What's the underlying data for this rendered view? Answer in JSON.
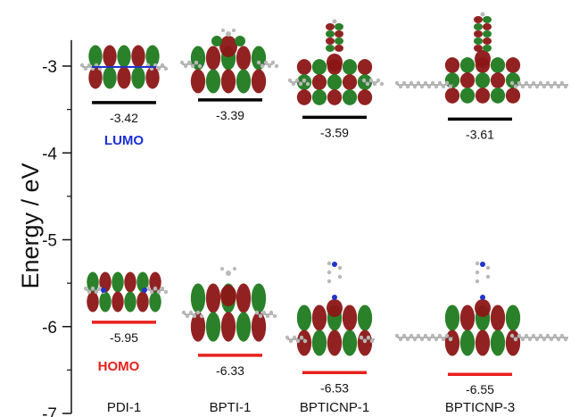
{
  "chart_data": {
    "type": "energy-level-diagram",
    "ylabel": "Energy / eV",
    "ylim": [
      -7,
      -2.7
    ],
    "yticks": [
      -3,
      -4,
      -5,
      -6,
      -7
    ],
    "categories": [
      "PDI-1",
      "BPTI-1",
      "BPTICNP-1",
      "BPTICNP-3"
    ],
    "series": [
      {
        "name": "LUMO",
        "values": [
          -3.42,
          -3.39,
          -3.59,
          -3.61
        ]
      },
      {
        "name": "HOMO",
        "values": [
          -5.95,
          -6.33,
          -6.53,
          -6.55
        ]
      }
    ],
    "value_labels": {
      "LUMO": [
        "-3.42",
        "-3.39",
        "-3.59",
        "-3.61"
      ],
      "HOMO": [
        "-5.95",
        "-6.33",
        "-6.53",
        "-6.55"
      ]
    },
    "annotations": [
      "LUMO",
      "HOMO"
    ]
  },
  "colors": {
    "lumo_level": "#000000",
    "homo_level": "#e8201c",
    "lumo_text": "#1c2fd6",
    "homo_text": "#e8201c",
    "orbital_red": "#8c1616",
    "orbital_green": "#1f7a1f",
    "atom_gray": "#b8b8b8",
    "atom_blue": "#2233cc"
  },
  "orbital_icons": [
    "molecular-orbital-lobes"
  ]
}
